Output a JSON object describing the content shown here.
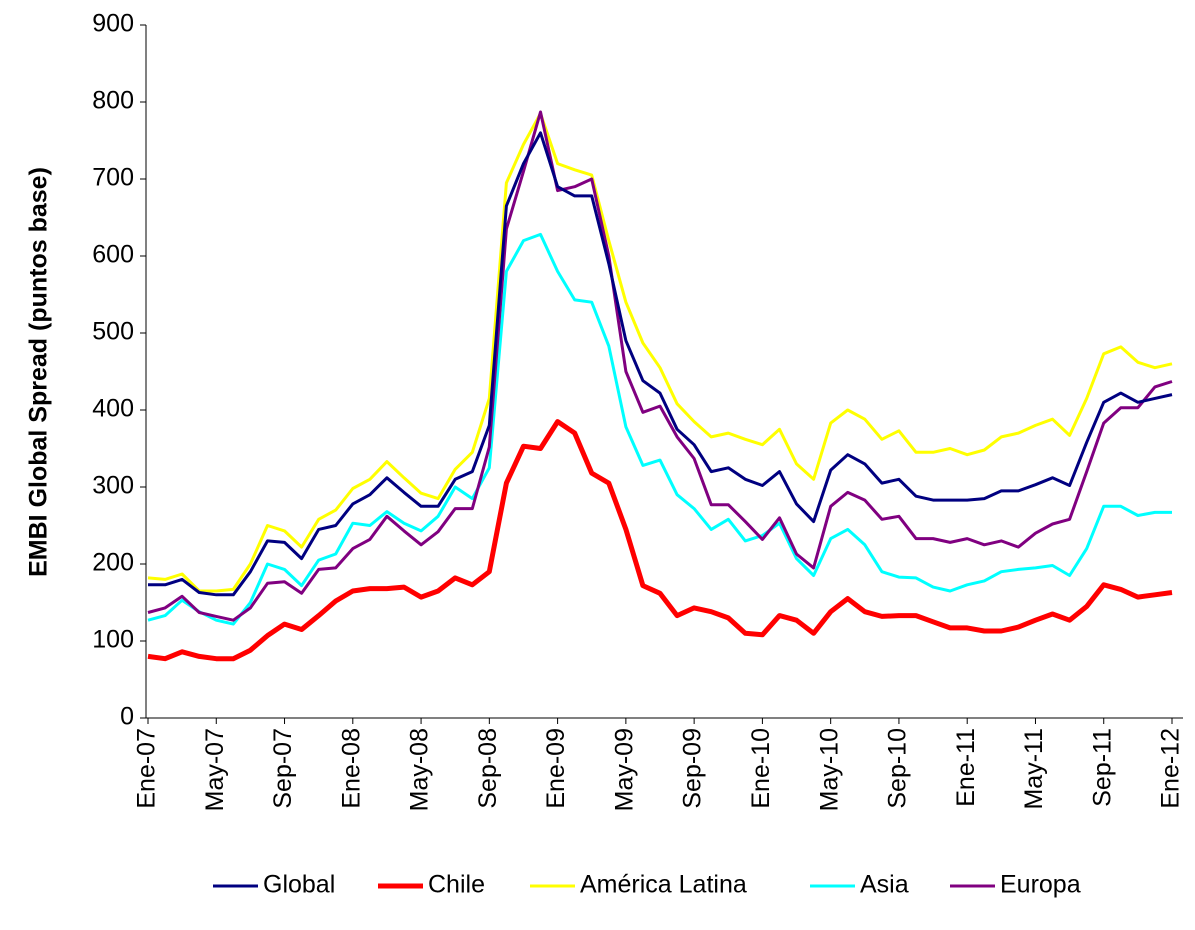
{
  "chart_data": {
    "type": "line",
    "ylabel": "EMBI Global Spread (puntos base)",
    "categories": [
      "Ene-07",
      null,
      null,
      null,
      "May-07",
      null,
      null,
      null,
      "Sep-07",
      null,
      null,
      null,
      "Ene-08",
      null,
      null,
      null,
      "May-08",
      null,
      null,
      null,
      "Sep-08",
      null,
      null,
      null,
      "Ene-09",
      null,
      null,
      null,
      "May-09",
      null,
      null,
      null,
      "Sep-09",
      null,
      null,
      null,
      "Ene-10",
      null,
      null,
      null,
      "May-10",
      null,
      null,
      null,
      "Sep-10",
      null,
      null,
      null,
      "Ene-11",
      null,
      null,
      null,
      "May-11",
      null,
      null,
      null,
      "Sep-11",
      null,
      null,
      null,
      "Ene-12"
    ],
    "ylim": [
      0,
      900
    ],
    "yticks": [
      0,
      100,
      200,
      300,
      400,
      500,
      600,
      700,
      800,
      900
    ],
    "legend": "bottom",
    "series": [
      {
        "name": "Global",
        "color": "#000080",
        "values": [
          173,
          173,
          180,
          163,
          160,
          160,
          190,
          230,
          228,
          207,
          245,
          250,
          278,
          290,
          312,
          293,
          275,
          275,
          310,
          320,
          380,
          665,
          720,
          760,
          690,
          678,
          678,
          590,
          490,
          438,
          422,
          375,
          355,
          320,
          325,
          310,
          302,
          320,
          278,
          255,
          322,
          342,
          330,
          305,
          310,
          288,
          283,
          283,
          283,
          285,
          295,
          295,
          303,
          312,
          302,
          358,
          410,
          422,
          410,
          415,
          420
        ]
      },
      {
        "name": "Chile",
        "color": "#ff0000",
        "values": [
          80,
          77,
          86,
          80,
          77,
          77,
          88,
          107,
          122,
          115,
          133,
          152,
          165,
          168,
          168,
          170,
          157,
          165,
          182,
          173,
          190,
          305,
          353,
          350,
          385,
          370,
          318,
          305,
          245,
          172,
          162,
          133,
          143,
          138,
          130,
          110,
          108,
          133,
          127,
          110,
          138,
          155,
          138,
          132,
          133,
          133,
          125,
          117,
          117,
          113,
          113,
          118,
          127,
          135,
          127,
          145,
          173,
          167,
          157,
          160,
          163
        ]
      },
      {
        "name": "América Latina",
        "color": "#ffff00",
        "values": [
          182,
          180,
          187,
          165,
          165,
          167,
          200,
          250,
          243,
          222,
          258,
          270,
          298,
          310,
          333,
          312,
          292,
          285,
          323,
          345,
          415,
          695,
          745,
          785,
          720,
          712,
          705,
          620,
          540,
          487,
          455,
          408,
          385,
          365,
          370,
          362,
          355,
          375,
          330,
          310,
          383,
          400,
          388,
          362,
          373,
          345,
          345,
          350,
          342,
          348,
          365,
          370,
          380,
          388,
          367,
          415,
          473,
          482,
          462,
          455,
          460
        ]
      },
      {
        "name": "Asia",
        "color": "#00ffff",
        "values": [
          127,
          133,
          153,
          138,
          127,
          122,
          150,
          200,
          193,
          172,
          205,
          213,
          253,
          250,
          268,
          253,
          243,
          262,
          300,
          285,
          325,
          580,
          620,
          628,
          580,
          543,
          540,
          483,
          378,
          328,
          335,
          290,
          272,
          245,
          258,
          230,
          237,
          253,
          207,
          185,
          233,
          245,
          225,
          190,
          183,
          182,
          170,
          165,
          173,
          178,
          190,
          193,
          195,
          198,
          185,
          220,
          275,
          275,
          263,
          267,
          267
        ]
      },
      {
        "name": "Europa",
        "color": "#800080",
        "values": [
          137,
          143,
          158,
          137,
          132,
          127,
          143,
          175,
          177,
          162,
          193,
          195,
          220,
          232,
          262,
          243,
          225,
          242,
          272,
          272,
          352,
          635,
          710,
          787,
          685,
          690,
          700,
          600,
          450,
          397,
          405,
          365,
          337,
          277,
          277,
          255,
          232,
          260,
          213,
          195,
          275,
          293,
          283,
          258,
          262,
          233,
          233,
          228,
          233,
          225,
          230,
          222,
          240,
          252,
          258,
          320,
          383,
          403,
          403,
          430,
          437
        ]
      }
    ]
  }
}
